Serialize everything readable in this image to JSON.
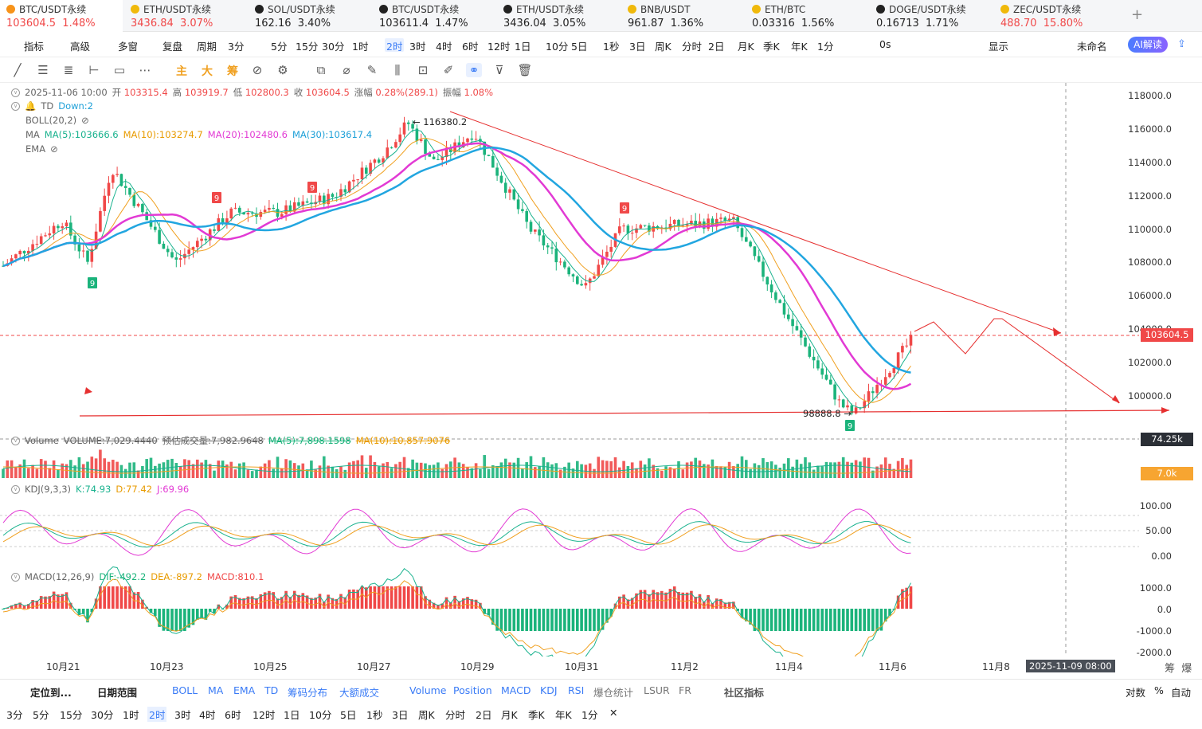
{
  "tabs": [
    {
      "name": "BTC/USDT永续",
      "price": "103604.5",
      "change": "1.48%",
      "dir": "up",
      "coin": "#f7931a",
      "active": true
    },
    {
      "name": "ETH/USDT永续",
      "price": "3436.84",
      "change": "3.07%",
      "dir": "up",
      "coin": "#f0b90b"
    },
    {
      "name": "SOL/USDT永续",
      "price": "162.16",
      "change": "3.40%",
      "dir": "none",
      "coin": "#222"
    },
    {
      "name": "BTC/USDT永续",
      "price": "103611.4",
      "change": "1.47%",
      "dir": "none",
      "coin": "#222"
    },
    {
      "name": "ETH/USDT永续",
      "price": "3436.04",
      "change": "3.05%",
      "dir": "none",
      "coin": "#222"
    },
    {
      "name": "BNB/USDT",
      "price": "961.87",
      "change": "1.36%",
      "dir": "none",
      "coin": "#f0b90b"
    },
    {
      "name": "ETH/BTC",
      "price": "0.03316",
      "change": "1.56%",
      "dir": "none",
      "coin": "#f0b90b"
    },
    {
      "name": "DOGE/USDT永续",
      "price": "0.16713",
      "change": "1.71%",
      "dir": "none",
      "coin": "#222"
    },
    {
      "name": "ZEC/USDT永续",
      "price": "488.70",
      "change": "15.80%",
      "dir": "up",
      "coin": "#f0b90b"
    }
  ],
  "toolbar": {
    "items": [
      "指标",
      "高级",
      "多窗",
      "复盘",
      "周期",
      "3分",
      "5分",
      "15分",
      "30分",
      "1时",
      "2时",
      "3时",
      "4时",
      "6时",
      "12时",
      "1日",
      "10分",
      "5日",
      "1秒",
      "3日",
      "周K",
      "分时",
      "2日",
      "月K",
      "季K",
      "年K",
      "1分",
      "0s",
      "显示",
      "未命名"
    ],
    "selected": "2时",
    "ai_label": "AI解读"
  },
  "drawing_tools": [
    "主",
    "大",
    "筹"
  ],
  "info": {
    "date": "2025-11-06 10:00",
    "open_label": "开",
    "open": "103315.4",
    "high_label": "高",
    "high": "103919.7",
    "low_label": "低",
    "low": "102800.3",
    "close_label": "收",
    "close": "103604.5",
    "chg_label": "涨幅",
    "chg": "0.28%(289.1)",
    "amp_label": "振幅",
    "amp": "1.08%"
  },
  "indicators": {
    "td": {
      "name": "TD",
      "value": "Down:2"
    },
    "boll": {
      "name": "BOLL(20,2)"
    },
    "ma": {
      "name": "MA",
      "ma5": "MA(5):103666.6",
      "ma10": "MA(10):103274.7",
      "ma20": "MA(20):102480.6",
      "ma30": "MA(30):103617.4"
    },
    "ema": {
      "name": "EMA"
    },
    "volume": {
      "name": "Volume",
      "vol": "VOLUME:7,029.4440",
      "est": "预估成交量:7,982.9648",
      "ma5": "MA(5):7,898.1598",
      "ma10": "MA(10):10,857.9076"
    },
    "kdj": {
      "name": "KDJ(9,3,3)",
      "k": "K:74.93",
      "d": "D:77.42",
      "j": "J:69.96"
    },
    "macd": {
      "name": "MACD(12,26,9)",
      "dif": "DIF:-492.2",
      "dea": "DEA:-897.2",
      "macd": "MACD:810.1"
    }
  },
  "annotations": {
    "high": "116380.2",
    "low": "98888.8",
    "td_markers": [
      "9",
      "9",
      "9",
      "9",
      "9"
    ]
  },
  "price_axis": [
    "118000.0",
    "116000.0",
    "114000.0",
    "112000.0",
    "110000.0",
    "108000.0",
    "106000.0",
    "104000.0",
    "102000.0",
    "100000.0"
  ],
  "current_price": "103604.5",
  "volume_axis": {
    "top": "74.25k",
    "level": "7.0k"
  },
  "kdj_axis": [
    "100.00",
    "50.00",
    "0.00"
  ],
  "macd_axis": [
    "1000.0",
    "0.0",
    "-1000.0",
    "-2000.0"
  ],
  "x_axis": [
    "10月21",
    "10月23",
    "10月25",
    "10月27",
    "10月29",
    "10月31",
    "11月2",
    "11月4",
    "11月6",
    "11月8"
  ],
  "crosshair_date": "2025-11-09 08:00",
  "bottom_bar1": {
    "locate": "定位到...",
    "range": "日期范围",
    "items": [
      "BOLL",
      "MA",
      "EMA",
      "TD",
      "筹码分布",
      "大额成交",
      "Volume",
      "Position",
      "MACD",
      "KDJ",
      "RSI",
      "爆仓统计",
      "LSUR",
      "FR",
      "社区指标"
    ],
    "right": [
      "对数",
      "%",
      "自动"
    ]
  },
  "bottom_bar2": {
    "items": [
      "3分",
      "5分",
      "15分",
      "30分",
      "1时",
      "2时",
      "3时",
      "4时",
      "6时",
      "12时",
      "1日",
      "10分",
      "5日",
      "1秒",
      "3日",
      "周K",
      "分时",
      "2日",
      "月K",
      "季K",
      "年K",
      "1分"
    ],
    "selected": "2时"
  },
  "chart_data": {
    "type": "candlestick",
    "interval": "2时",
    "price_range": [
      98000,
      118500
    ],
    "key_points": [
      {
        "x": "10月20",
        "price": 107800
      },
      {
        "x": "10月21",
        "price": 110500
      },
      {
        "x": "10月22",
        "price": 108000
      },
      {
        "x": "10月22 12:00",
        "price": 113700
      },
      {
        "x": "10月23",
        "price": 108000
      },
      {
        "x": "10月24",
        "price": 111000
      },
      {
        "x": "10月25",
        "price": 111000
      },
      {
        "x": "10月26",
        "price": 112000
      },
      {
        "x": "10月27",
        "price": 114500
      },
      {
        "x": "10月27 12:00",
        "price": 116380.2
      },
      {
        "x": "10月28",
        "price": 114000
      },
      {
        "x": "10月29",
        "price": 115800
      },
      {
        "x": "10月30",
        "price": 110000
      },
      {
        "x": "10月31",
        "price": 106500
      },
      {
        "x": "11月1",
        "price": 110000
      },
      {
        "x": "11月2",
        "price": 110300
      },
      {
        "x": "11月3",
        "price": 110500
      },
      {
        "x": "11月4",
        "price": 105000
      },
      {
        "x": "11月5",
        "price": 99500
      },
      {
        "x": "11月5 12:00",
        "price": 98888.8
      },
      {
        "x": "11月6",
        "price": 103604.5
      }
    ]
  }
}
